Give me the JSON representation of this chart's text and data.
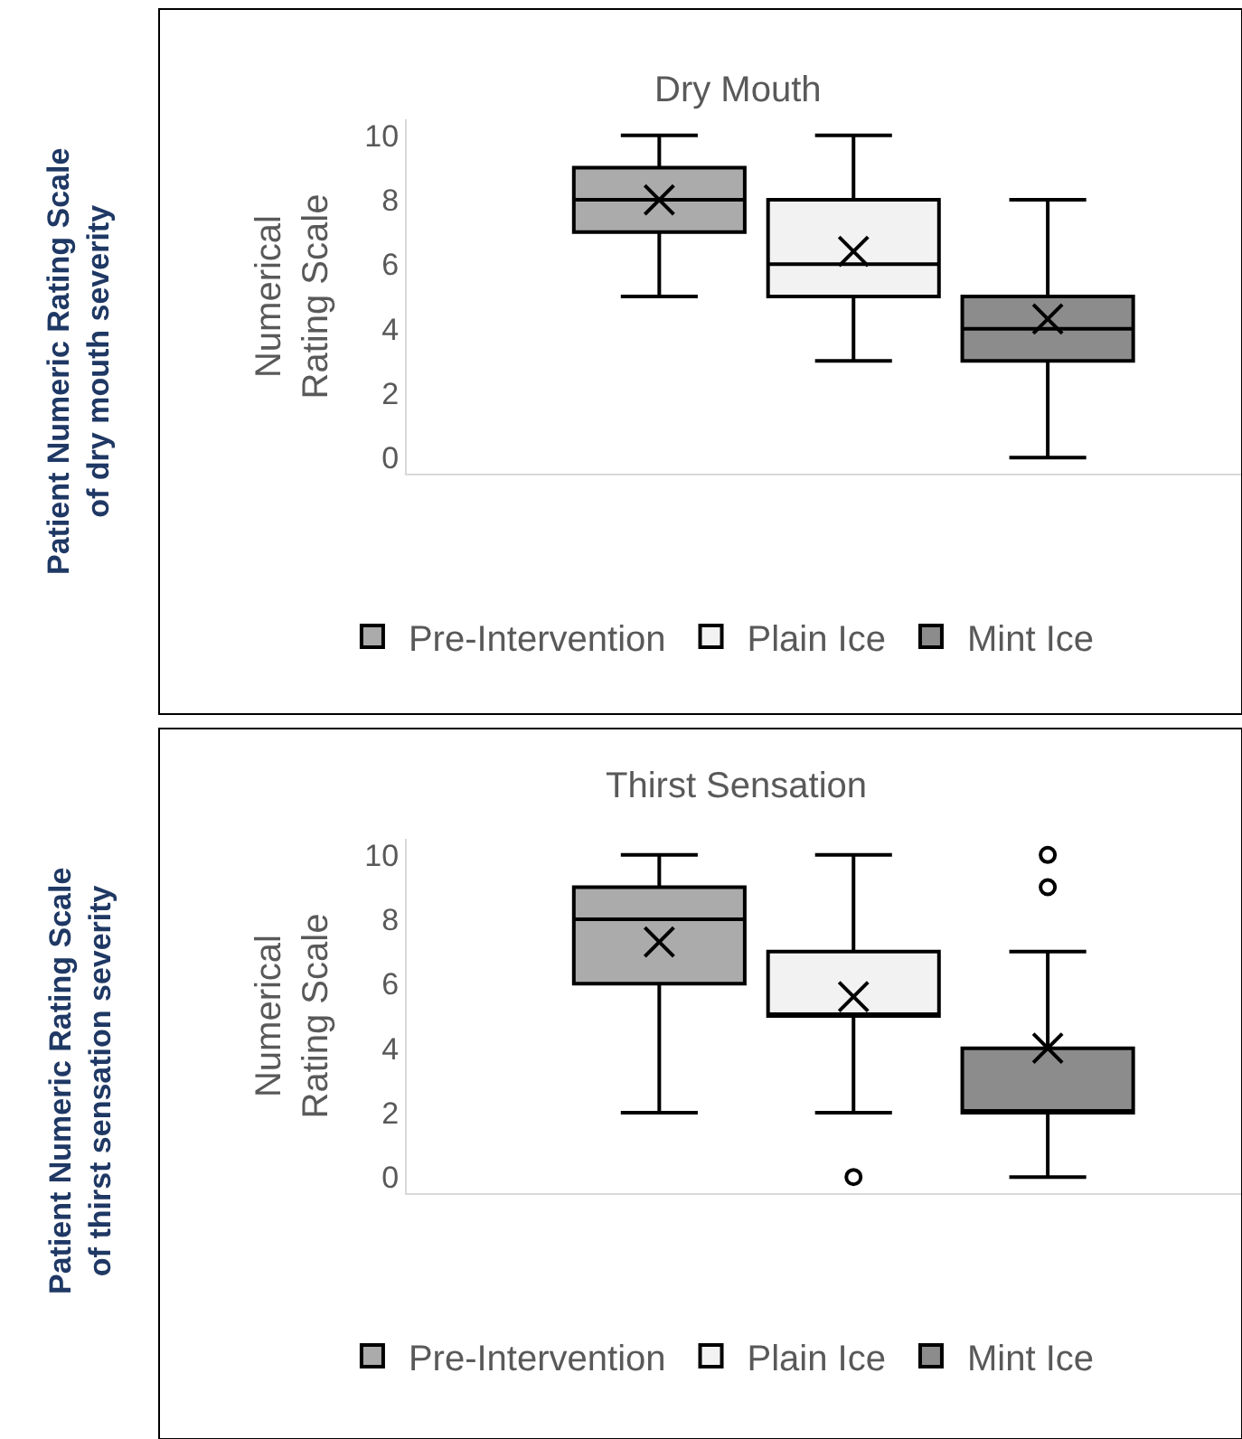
{
  "chart_data": [
    {
      "type": "box",
      "title": "Dry Mouth",
      "ylabel": "Numerical Rating Scale",
      "categories": [
        null
      ],
      "ylim": [
        -0.5,
        10.5
      ],
      "yticks": [
        0,
        2,
        4,
        6,
        8,
        10
      ],
      "tick_labels": "y",
      "legend": "bottom",
      "annotations": [
        "Patient Numeric Rating Scale of dry mouth severity"
      ],
      "series": [
        {
          "name": "Pre-Intervention",
          "color": "#ababab",
          "boxes": [
            {
              "low": 5,
              "q1": 7,
              "median": 8,
              "q3": 9,
              "high": 10,
              "mean": 8.0
            }
          ]
        },
        {
          "name": "Plain Ice",
          "color": "#f2f2f2",
          "boxes": [
            {
              "low": 3,
              "q1": 5,
              "median": 6,
              "q3": 8,
              "high": 10,
              "mean": 6.4
            }
          ]
        },
        {
          "name": "Mint Ice",
          "color": "#8c8c8c",
          "boxes": [
            {
              "low": 0,
              "q1": 3,
              "median": 4,
              "q3": 5,
              "high": 8,
              "mean": 4.3
            }
          ]
        }
      ]
    },
    {
      "type": "box",
      "title": "Thirst Sensation",
      "ylabel": "Numerical Rating Scale",
      "categories": [
        null
      ],
      "ylim": [
        -0.5,
        10.5
      ],
      "yticks": [
        0,
        2,
        4,
        6,
        8,
        10
      ],
      "tick_labels": "y",
      "legend": "bottom",
      "annotations": [
        "Patient Numeric Rating Scale of thirst sensation severity"
      ],
      "series": [
        {
          "name": "Pre-Intervention",
          "color": "#ababab",
          "boxes": [
            {
              "low": 2,
              "q1": 6,
              "median": 8,
              "q3": 9,
              "high": 10,
              "mean": 7.3
            }
          ]
        },
        {
          "name": "Plain Ice",
          "color": "#f2f2f2",
          "boxes": [
            {
              "low": 2,
              "q1": 5,
              "median": 5,
              "q3": 7,
              "high": 10,
              "mean": 5.6,
              "outliers": [
                0
              ]
            }
          ]
        },
        {
          "name": "Mint Ice",
          "color": "#8c8c8c",
          "boxes": [
            {
              "low": 0,
              "q1": 2,
              "median": 2,
              "q3": 4,
              "high": 7,
              "mean": 4.0,
              "outliers": [
                9,
                10
              ]
            }
          ]
        }
      ]
    }
  ]
}
